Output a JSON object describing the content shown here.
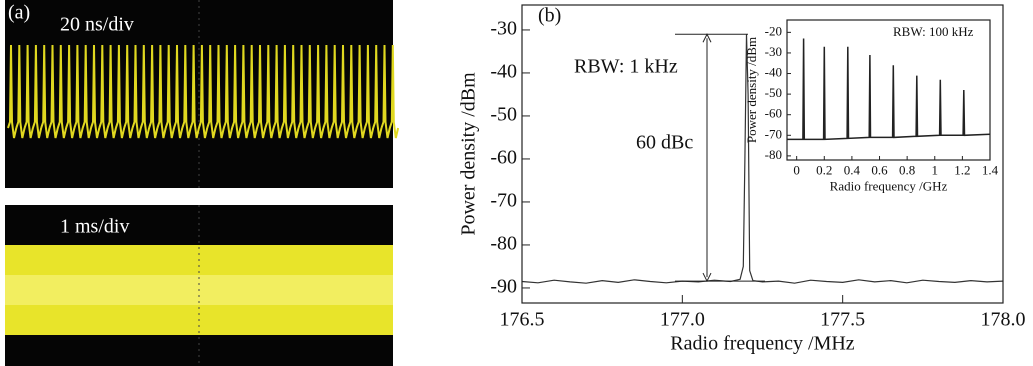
{
  "panel_a": {
    "label": "(a)",
    "top_scale": "20 ns/div",
    "bottom_scale": "1 ms/div"
  },
  "chart_data": [
    {
      "type": "line",
      "label": "(b)",
      "xlabel": "Radio frequency /MHz",
      "ylabel": "Power density /dBm",
      "annotations": [
        "RBW: 1 kHz",
        "60 dBc"
      ],
      "xlim": [
        176.5,
        178.0
      ],
      "ylim": [
        -93.5,
        -24.2
      ],
      "xticks": [
        176.5,
        {
          "value": 177,
          "label": "177.0"
        },
        177.5,
        {
          "value": 178,
          "label": "178.0"
        }
      ],
      "yticks": [
        -90,
        -80,
        -70,
        -60,
        -50,
        -40,
        -30
      ],
      "x": [
        176.5,
        176.55,
        176.6,
        176.65,
        176.7,
        176.75,
        176.8,
        176.85,
        176.9,
        176.95,
        177.0,
        177.05,
        177.1,
        177.15,
        177.18,
        177.19,
        177.195,
        177.2,
        177.205,
        177.21,
        177.22,
        177.25,
        177.3,
        177.35,
        177.4,
        177.45,
        177.5,
        177.55,
        177.6,
        177.65,
        177.7,
        177.75,
        177.8,
        177.85,
        177.9,
        177.95,
        178.0
      ],
      "series": [
        {
          "color": "#333333",
          "values": [
            -88.5,
            -88.8,
            -88.2,
            -88.6,
            -88.9,
            -88.3,
            -88.7,
            -88.1,
            -88.5,
            -88.8,
            -88.4,
            -88.6,
            -88.2,
            -88.5,
            -88.0,
            -85,
            -60,
            -31,
            -45,
            -86,
            -88.3,
            -88.6,
            -88.4,
            -88.9,
            -88.2,
            -88.5,
            -88.7,
            -88.1,
            -88.6,
            -88.3,
            -88.8,
            -88.2,
            -88.5,
            -88.7,
            -88.3,
            -88.6,
            -88.4
          ]
        }
      ]
    },
    {
      "type": "line",
      "xlabel": "Radio frequency /GHz",
      "ylabel": "Power density /dBm",
      "annotations": [
        "RBW: 100 kHz"
      ],
      "xlim": [
        -0.07,
        1.4
      ],
      "ylim": [
        -82,
        -14
      ],
      "xticks": [
        0,
        0.2,
        0.4,
        0.6,
        0.8,
        1.0,
        1.2,
        1.4
      ],
      "yticks": [
        -80,
        -70,
        -60,
        -50,
        -40,
        -30,
        -20
      ],
      "x": [
        -0.07,
        0.045,
        0.05,
        0.055,
        0.195,
        0.2,
        0.205,
        0.365,
        0.37,
        0.375,
        0.525,
        0.53,
        0.535,
        0.695,
        0.7,
        0.705,
        0.865,
        0.87,
        0.875,
        1.035,
        1.04,
        1.045,
        1.205,
        1.21,
        1.215,
        1.4
      ],
      "series": [
        {
          "color": "#222222",
          "values": [
            -72,
            -72,
            -23,
            -72,
            -72,
            -27,
            -72,
            -71.5,
            -27,
            -71.5,
            -71,
            -31,
            -71,
            -71,
            -36,
            -71,
            -70.5,
            -41,
            -70.5,
            -70,
            -43,
            -70,
            -70,
            -48,
            -70,
            -69.5
          ]
        }
      ]
    }
  ]
}
